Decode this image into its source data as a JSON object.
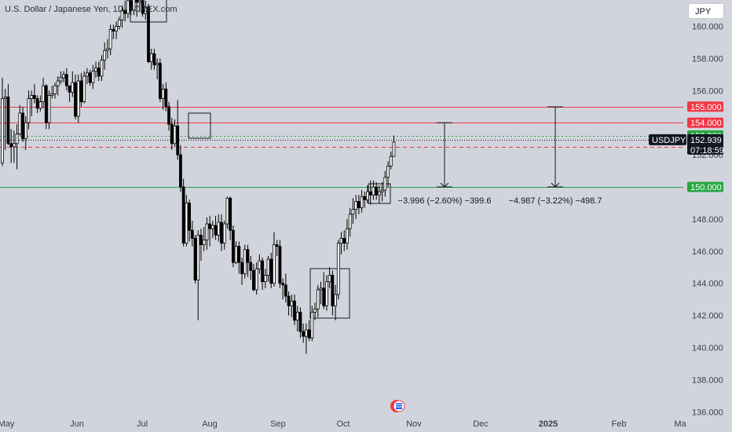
{
  "chart_title": "U.S. Dollar / Japanese Yen, 1D, FOREX.com",
  "currency_button": "JPY",
  "chart_data": {
    "type": "candlestick",
    "symbol": "USDJPY",
    "ylim": [
      135.7,
      162.1
    ],
    "y_ticks": [
      "136.000",
      "138.000",
      "140.000",
      "142.000",
      "144.000",
      "146.000",
      "148.000",
      "150.000",
      "152.000",
      "154.000",
      "156.000",
      "158.000",
      "160.000"
    ],
    "x_ticks": [
      {
        "label": "May",
        "bold": false
      },
      {
        "label": "Jun",
        "bold": false
      },
      {
        "label": "Jul",
        "bold": false
      },
      {
        "label": "Aug",
        "bold": false
      },
      {
        "label": "Sep",
        "bold": false
      },
      {
        "label": "Oct",
        "bold": false
      },
      {
        "label": "Nov",
        "bold": false
      },
      {
        "label": "Dec",
        "bold": false
      },
      {
        "label": "2025",
        "bold": true
      },
      {
        "label": "Feb",
        "bold": false
      },
      {
        "label": "Ma",
        "bold": false
      }
    ],
    "price_lines": [
      {
        "label": "155.000",
        "value": 155.0,
        "color": "#f23645",
        "style": "solid"
      },
      {
        "label": "154.000",
        "value": 154.0,
        "color": "#f23645",
        "style": "solid"
      },
      {
        "label": "153.200",
        "value": 153.2,
        "color": "#26a641",
        "style": "dotted"
      },
      {
        "label": "152.500",
        "value": 152.5,
        "color": "#f23645",
        "style": "dashed"
      },
      {
        "label": "150.000",
        "value": 150.0,
        "color": "#26a641",
        "style": "solid"
      }
    ],
    "current_price": {
      "symbol": "USDJPY",
      "price": "152.939",
      "countdown": "07:18:59",
      "value": 152.939
    },
    "measurements": [
      {
        "text": "−3.996 (−2.60%) −399.6",
        "from": 153.996,
        "to": 150.0
      },
      {
        "text": "−4.987 (−3.22%) −498.7",
        "from": 154.987,
        "to": 150.0
      }
    ],
    "candles": [
      [
        151.5,
        155.5,
        151.3,
        156.8
      ],
      [
        155.5,
        155.6,
        152.3,
        156.1
      ],
      [
        155.6,
        152.7,
        152.6,
        156.4
      ],
      [
        152.7,
        152.5,
        151.5,
        153.6
      ],
      [
        152.5,
        152.7,
        151.5,
        153.5
      ],
      [
        152.7,
        153.3,
        151.1,
        153.9
      ],
      [
        153.3,
        154.6,
        153.2,
        155.1
      ],
      [
        154.6,
        153.0,
        152.8,
        155.0
      ],
      [
        153.0,
        154.0,
        152.3,
        154.4
      ],
      [
        154.0,
        155.5,
        153.6,
        156.0
      ],
      [
        155.5,
        155.7,
        154.4,
        156.0
      ],
      [
        155.7,
        155.5,
        155.2,
        156.4
      ],
      [
        155.5,
        154.9,
        154.6,
        155.7
      ],
      [
        154.9,
        155.3,
        154.7,
        155.7
      ],
      [
        155.3,
        156.3,
        154.9,
        156.8
      ],
      [
        156.3,
        154.0,
        153.6,
        156.4
      ],
      [
        154.0,
        155.7,
        153.6,
        156.0
      ],
      [
        155.7,
        155.8,
        155.5,
        156.3
      ],
      [
        155.8,
        156.3,
        155.5,
        156.5
      ],
      [
        156.3,
        156.6,
        155.7,
        156.9
      ],
      [
        156.6,
        156.8,
        156.4,
        157.2
      ],
      [
        156.8,
        157.0,
        156.5,
        157.2
      ],
      [
        157.0,
        156.3,
        156.0,
        157.4
      ],
      [
        156.3,
        155.9,
        155.3,
        156.3
      ],
      [
        155.9,
        156.5,
        155.6,
        157.2
      ],
      [
        156.5,
        154.4,
        154.2,
        157.0
      ],
      [
        154.4,
        156.6,
        154.0,
        157.0
      ],
      [
        156.6,
        155.3,
        155.0,
        157.1
      ],
      [
        155.3,
        156.9,
        155.2,
        157.2
      ],
      [
        156.9,
        157.1,
        156.4,
        157.4
      ],
      [
        157.1,
        156.5,
        156.3,
        157.3
      ],
      [
        156.5,
        157.2,
        156.1,
        157.6
      ],
      [
        157.2,
        157.4,
        156.8,
        157.8
      ],
      [
        157.4,
        156.9,
        156.6,
        157.8
      ],
      [
        156.9,
        157.9,
        156.6,
        158.2
      ],
      [
        157.9,
        158.5,
        157.3,
        159.0
      ],
      [
        158.5,
        158.6,
        158.0,
        159.2
      ],
      [
        158.6,
        159.8,
        158.2,
        160.1
      ],
      [
        159.8,
        159.7,
        159.2,
        160.1
      ],
      [
        159.7,
        160.0,
        159.2,
        160.3
      ],
      [
        160.0,
        160.4,
        159.8,
        160.6
      ],
      [
        160.4,
        161.0,
        159.9,
        161.3
      ],
      [
        161.0,
        160.8,
        160.3,
        161.6
      ],
      [
        160.8,
        161.6,
        160.5,
        161.9
      ],
      [
        161.6,
        161.0,
        160.7,
        161.9
      ],
      [
        161.0,
        161.8,
        160.7,
        162.1
      ],
      [
        161.8,
        161.5,
        160.6,
        161.9
      ],
      [
        161.5,
        161.6,
        160.9,
        162.0
      ],
      [
        161.6,
        160.8,
        160.6,
        162.0
      ],
      [
        160.8,
        161.2,
        160.4,
        161.6
      ],
      [
        161.2,
        157.8,
        157.7,
        161.4
      ],
      [
        157.8,
        158.3,
        157.3,
        158.6
      ],
      [
        158.3,
        157.6,
        157.3,
        158.6
      ],
      [
        157.6,
        157.7,
        156.7,
        158.0
      ],
      [
        157.7,
        155.5,
        155.3,
        158.0
      ],
      [
        155.5,
        156.1,
        154.8,
        156.4
      ],
      [
        156.1,
        155.0,
        154.7,
        156.5
      ],
      [
        155.0,
        153.9,
        153.5,
        155.3
      ],
      [
        153.9,
        152.7,
        152.3,
        154.3
      ],
      [
        152.7,
        153.8,
        152.5,
        154.2
      ],
      [
        153.8,
        152.0,
        151.7,
        155.4
      ],
      [
        152.0,
        150.0,
        149.7,
        152.6
      ],
      [
        150.0,
        146.5,
        146.3,
        150.5
      ],
      [
        146.5,
        149.0,
        146.3,
        149.5
      ],
      [
        149.0,
        147.3,
        146.6,
        149.2
      ],
      [
        147.3,
        146.8,
        146.3,
        147.9
      ],
      [
        146.8,
        144.2,
        144.0,
        147.0
      ],
      [
        144.2,
        147.0,
        141.7,
        147.3
      ],
      [
        147.0,
        146.4,
        145.4,
        147.4
      ],
      [
        146.4,
        146.7,
        146.0,
        147.5
      ],
      [
        146.7,
        147.7,
        146.1,
        148.1
      ],
      [
        147.7,
        147.4,
        146.3,
        148.2
      ],
      [
        147.4,
        147.6,
        146.8,
        147.9
      ],
      [
        147.6,
        147.0,
        146.7,
        148.2
      ],
      [
        147.0,
        147.8,
        146.6,
        148.3
      ],
      [
        147.8,
        146.5,
        146.0,
        148.3
      ],
      [
        146.5,
        147.7,
        146.1,
        147.9
      ],
      [
        147.7,
        149.3,
        147.4,
        149.4
      ],
      [
        149.3,
        147.3,
        146.7,
        149.4
      ],
      [
        147.3,
        145.3,
        145.0,
        147.6
      ],
      [
        145.3,
        146.3,
        145.2,
        146.6
      ],
      [
        146.3,
        145.3,
        144.6,
        146.6
      ],
      [
        145.3,
        144.6,
        143.9,
        145.6
      ],
      [
        144.6,
        146.1,
        144.3,
        146.4
      ],
      [
        146.1,
        145.3,
        144.4,
        146.4
      ],
      [
        145.3,
        144.8,
        144.2,
        145.7
      ],
      [
        144.8,
        143.6,
        143.5,
        145.2
      ],
      [
        143.6,
        144.9,
        143.3,
        145.3
      ],
      [
        144.9,
        145.4,
        144.6,
        145.8
      ],
      [
        145.4,
        144.1,
        143.6,
        145.6
      ],
      [
        144.1,
        144.5,
        143.7,
        144.9
      ],
      [
        144.5,
        145.5,
        144.1,
        145.7
      ],
      [
        145.5,
        144.0,
        143.7,
        145.9
      ],
      [
        144.0,
        146.4,
        143.8,
        147.2
      ],
      [
        146.4,
        146.3,
        145.7,
        146.7
      ],
      [
        146.3,
        144.0,
        143.7,
        146.7
      ],
      [
        144.0,
        143.9,
        143.0,
        144.3
      ],
      [
        143.9,
        143.2,
        142.8,
        144.6
      ],
      [
        143.2,
        142.6,
        142.0,
        143.5
      ],
      [
        142.6,
        142.9,
        141.9,
        143.3
      ],
      [
        142.9,
        141.7,
        141.4,
        143.3
      ],
      [
        141.7,
        142.2,
        141.0,
        142.6
      ],
      [
        142.2,
        141.0,
        140.6,
        142.5
      ],
      [
        141.0,
        140.7,
        140.3,
        141.5
      ],
      [
        140.7,
        141.1,
        139.6,
        141.5
      ],
      [
        141.1,
        140.6,
        140.4,
        141.7
      ],
      [
        140.6,
        142.2,
        140.4,
        142.6
      ],
      [
        142.2,
        142.4,
        141.7,
        142.8
      ],
      [
        142.4,
        143.6,
        141.9,
        143.9
      ],
      [
        143.6,
        143.7,
        142.7,
        144.1
      ],
      [
        143.7,
        142.6,
        142.4,
        144.7
      ],
      [
        142.6,
        144.1,
        142.3,
        144.5
      ],
      [
        144.1,
        144.5,
        143.7,
        145.0
      ],
      [
        144.5,
        142.6,
        142.0,
        144.8
      ],
      [
        142.6,
        143.3,
        141.7,
        143.9
      ],
      [
        143.3,
        146.5,
        143.0,
        146.7
      ],
      [
        146.5,
        146.8,
        145.8,
        147.2
      ],
      [
        146.8,
        146.5,
        146.0,
        147.3
      ],
      [
        146.5,
        147.4,
        146.1,
        148.0
      ],
      [
        147.4,
        148.3,
        146.9,
        148.7
      ],
      [
        148.3,
        148.6,
        147.7,
        149.3
      ],
      [
        148.6,
        149.1,
        148.0,
        149.5
      ],
      [
        149.1,
        148.7,
        148.3,
        149.5
      ],
      [
        148.7,
        149.4,
        148.4,
        149.8
      ],
      [
        149.4,
        149.2,
        148.7,
        149.7
      ],
      [
        149.2,
        149.7,
        149.0,
        150.1
      ],
      [
        149.7,
        149.5,
        148.9,
        150.4
      ],
      [
        149.5,
        150.0,
        149.2,
        150.4
      ],
      [
        150.0,
        149.5,
        149.2,
        150.3
      ],
      [
        149.5,
        149.7,
        149.0,
        150.1
      ],
      [
        149.7,
        149.8,
        149.1,
        150.3
      ],
      [
        149.8,
        150.6,
        149.4,
        151.0
      ],
      [
        150.6,
        151.3,
        150.0,
        151.6
      ],
      [
        151.3,
        151.9,
        151.1,
        152.2
      ],
      [
        151.9,
        152.8,
        151.9,
        153.2
      ]
    ]
  }
}
